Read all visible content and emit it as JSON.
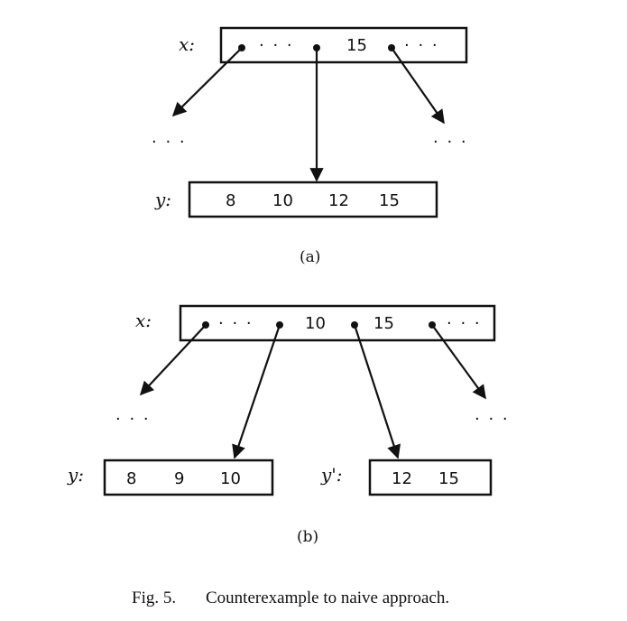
{
  "figure_a": {
    "parent_label": "x:",
    "parent_entries": [
      "· · ·",
      "15",
      "· · ·"
    ],
    "left_ellipsis": "· · ·",
    "right_ellipsis": "· · ·",
    "child_label": "y:",
    "child_keys": [
      "8",
      "10",
      "12",
      "15"
    ],
    "sublabel": "(a)"
  },
  "figure_b": {
    "parent_label": "x:",
    "parent_entries": [
      "· · ·",
      "10",
      "15",
      "· · ·"
    ],
    "left_ellipsis": "· · ·",
    "right_ellipsis": "· · ·",
    "child_left_label": "y:",
    "child_left_keys": [
      "8",
      "9",
      "10"
    ],
    "child_right_label": "y':",
    "child_right_keys": [
      "12",
      "15"
    ],
    "sublabel": "(b)"
  },
  "caption": {
    "number": "Fig. 5.",
    "text": "Counterexample to naive approach."
  }
}
